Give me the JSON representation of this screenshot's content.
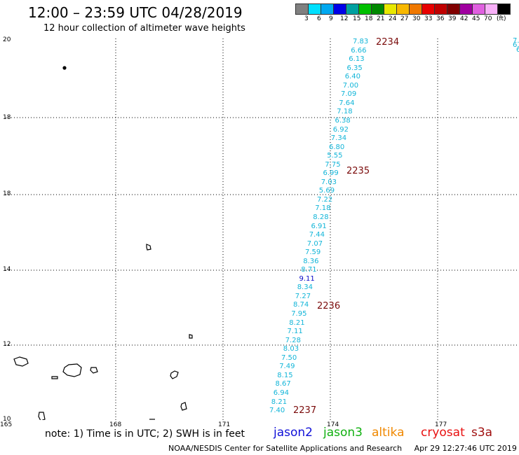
{
  "header": {
    "title": "12:00 – 23:59 UTC 04/28/2019",
    "subtitle": "12 hour collection of altimeter wave heights"
  },
  "legend": {
    "colors": [
      "#808080",
      "#00e0ff",
      "#00a8f0",
      "#0000e8",
      "#00a0a0",
      "#00c000",
      "#008800",
      "#e8e800",
      "#f8b800",
      "#f07800",
      "#e80000",
      "#c00000",
      "#800000",
      "#a000a0",
      "#e060e0",
      "#f8b0f8",
      "#000000"
    ],
    "labels": [
      "3",
      "6",
      "9",
      "12",
      "15",
      "18",
      "21",
      "24",
      "27",
      "30",
      "33",
      "36",
      "39",
      "42",
      "45",
      "70",
      "(ft)"
    ]
  },
  "axes": {
    "y_labels": [
      "20",
      "18",
      "18",
      "14",
      "12",
      "10"
    ],
    "x_labels": [
      "165",
      "168",
      "171",
      "174",
      "177"
    ]
  },
  "track": {
    "color": "#12b5d8",
    "highlight_color": "#0a0ac8",
    "measurements": [
      "7.83",
      "6.66",
      "6.13",
      "6.35",
      "6.40",
      "7.00",
      "7.09",
      "7.64",
      "7.18",
      "6.38",
      "6.92",
      "7.34",
      "6.80",
      "5.55",
      "7.75",
      "6.99",
      "7.03",
      "5.69",
      "7.22",
      "7.18",
      "8.28",
      "6.91",
      "7.44",
      "7.07",
      "7.59",
      "8.36",
      "8.71",
      "9.11",
      "8.34",
      "7.27",
      "8.74",
      "7.95",
      "8.21",
      "7.11",
      "7.28",
      "8.03",
      "7.50",
      "7.49",
      "8.15",
      "8.67",
      "6.94",
      "8.21",
      "7.40"
    ],
    "highlight_index": 27,
    "edge_values": [
      "7.",
      "6.",
      "6"
    ],
    "time_labels": [
      "2234",
      "2235",
      "2236",
      "2237"
    ]
  },
  "notes": {
    "note": "note: 1) Time is in UTC; 2) SWH is in feet",
    "satellites": [
      {
        "name": "jason2",
        "color": "#1010d8"
      },
      {
        "name": "jason3",
        "color": "#10b010"
      },
      {
        "name": "altika",
        "color": "#f08800"
      },
      {
        "name": "cryosat",
        "color": "#e81010"
      },
      {
        "name": "s3a",
        "color": "#a01010"
      }
    ],
    "footer": "NOAA/NESDIS Center for Satellite Applications and Research     Apr 29 12:27:46 UTC 2019"
  }
}
